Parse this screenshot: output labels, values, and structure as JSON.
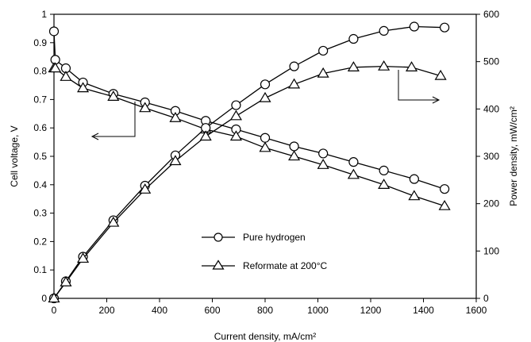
{
  "chart_data": {
    "type": "line",
    "xlabel": "Current density, mA/cm²",
    "ylabel_left": "Cell voltage, V",
    "ylabel_right": "Power density, mW/cm²",
    "xlim": [
      0,
      1600
    ],
    "ylim_left": [
      0,
      1
    ],
    "ylim_right": [
      0,
      600
    ],
    "x_ticks": [
      0,
      200,
      400,
      600,
      800,
      1000,
      1200,
      1400,
      1600
    ],
    "y_left_ticks": [
      "0",
      "0.1",
      "0.2",
      "0.3",
      "0.4",
      "0.5",
      "0.6",
      "0.7",
      "0.8",
      "0.9",
      "1"
    ],
    "y_right_ticks": [
      "0",
      "100",
      "200",
      "300",
      "400",
      "500",
      "600"
    ],
    "grid": false,
    "legend": {
      "placement": "center",
      "entries": [
        {
          "label": "Pure hydrogen",
          "marker": "circle"
        },
        {
          "label": "Reformate at 200°C",
          "marker": "triangle"
        }
      ]
    },
    "series": [
      {
        "name": "Pure hydrogen",
        "axis": "left",
        "marker": "circle",
        "x": [
          0,
          5,
          45,
          110,
          225,
          345,
          460,
          575,
          690,
          800,
          910,
          1020,
          1135,
          1250,
          1365,
          1480
        ],
        "y": [
          0.94,
          0.84,
          0.81,
          0.76,
          0.72,
          0.69,
          0.66,
          0.625,
          0.595,
          0.565,
          0.535,
          0.51,
          0.48,
          0.45,
          0.42,
          0.385
        ]
      },
      {
        "name": "Reformate at 200°C",
        "axis": "left",
        "marker": "triangle",
        "x": [
          0,
          5,
          45,
          110,
          225,
          345,
          460,
          575,
          690,
          800,
          910,
          1020,
          1135,
          1250,
          1365,
          1480
        ],
        "y": [
          0.81,
          0.81,
          0.78,
          0.74,
          0.71,
          0.67,
          0.635,
          0.595,
          0.57,
          0.53,
          0.5,
          0.47,
          0.435,
          0.4,
          0.36,
          0.325
        ]
      },
      {
        "name": "Pure hydrogen",
        "axis": "right",
        "marker": "circle",
        "x": [
          0,
          45,
          110,
          225,
          345,
          460,
          575,
          690,
          800,
          910,
          1020,
          1135,
          1250,
          1365,
          1480
        ],
        "y": [
          0,
          36,
          88,
          165,
          238,
          302,
          360,
          408,
          452,
          490,
          523,
          548,
          565,
          574,
          572
        ]
      },
      {
        "name": "Reformate at 200°C",
        "axis": "right",
        "marker": "triangle",
        "x": [
          0,
          45,
          110,
          225,
          345,
          460,
          575,
          690,
          800,
          910,
          1020,
          1135,
          1250,
          1355,
          1465
        ],
        "y": [
          0,
          34,
          84,
          160,
          230,
          290,
          342,
          385,
          423,
          452,
          475,
          488,
          490,
          488,
          470
        ]
      }
    ]
  }
}
